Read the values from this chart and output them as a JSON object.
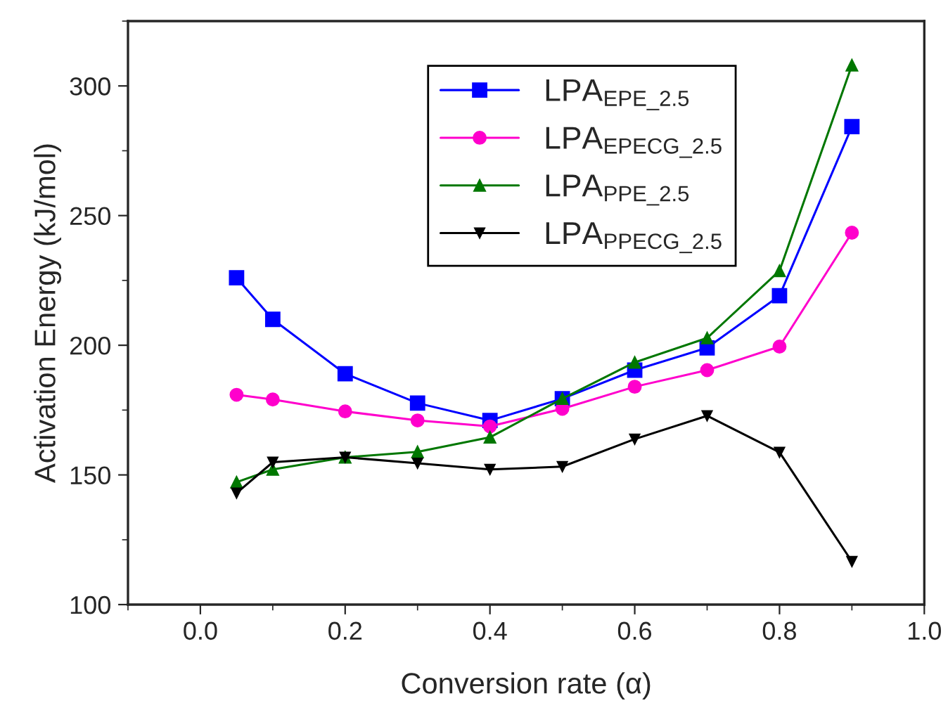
{
  "chart_data": {
    "type": "line",
    "xlabel": "Conversion rate (α)",
    "ylabel": "Activation Energy (kJ/mol)",
    "x": [
      0.05,
      0.1,
      0.2,
      0.3,
      0.4,
      0.5,
      0.6,
      0.7,
      0.8,
      0.9
    ],
    "series": [
      {
        "name": "LPA$_{EPE_2.5}$",
        "color": "#0000ff",
        "marker": "square",
        "values": [
          226,
          210,
          189,
          177.7,
          171,
          179.4,
          190.4,
          199,
          219.1,
          284.3
        ]
      },
      {
        "name": "LPA$_{EPECG_2.5}$",
        "color": "#ff00cc",
        "marker": "circle",
        "values": [
          180.9,
          179.1,
          174.5,
          171,
          168.7,
          175.5,
          184,
          190.4,
          199.5,
          243.4
        ]
      },
      {
        "name": "LPA$_{PPE_2.5}$",
        "color": "#007700",
        "marker": "triangle",
        "values": [
          147.2,
          152.1,
          156.8,
          158.9,
          164.5,
          179.4,
          193.4,
          202.8,
          228.7,
          308
        ]
      },
      {
        "name": "LPA$_{PPECG_2.5}$",
        "color": "#000000",
        "marker": "triangle_down",
        "values": [
          143,
          154.9,
          156.8,
          154.5,
          152.1,
          153.2,
          163.8,
          172.8,
          158.7,
          116.6
        ]
      }
    ],
    "xlim": [
      -0.1,
      1.0
    ],
    "xticks": [
      {
        "value": 0.0,
        "label": "0.0"
      },
      0.2,
      0.4,
      0.6,
      0.8,
      {
        "value": 1.0,
        "label": "1.0"
      }
    ],
    "ylim": [
      100,
      325
    ],
    "yticks": [
      100,
      150,
      200,
      250,
      300
    ],
    "grid": false,
    "legend": "top",
    "line_style": "solid"
  }
}
